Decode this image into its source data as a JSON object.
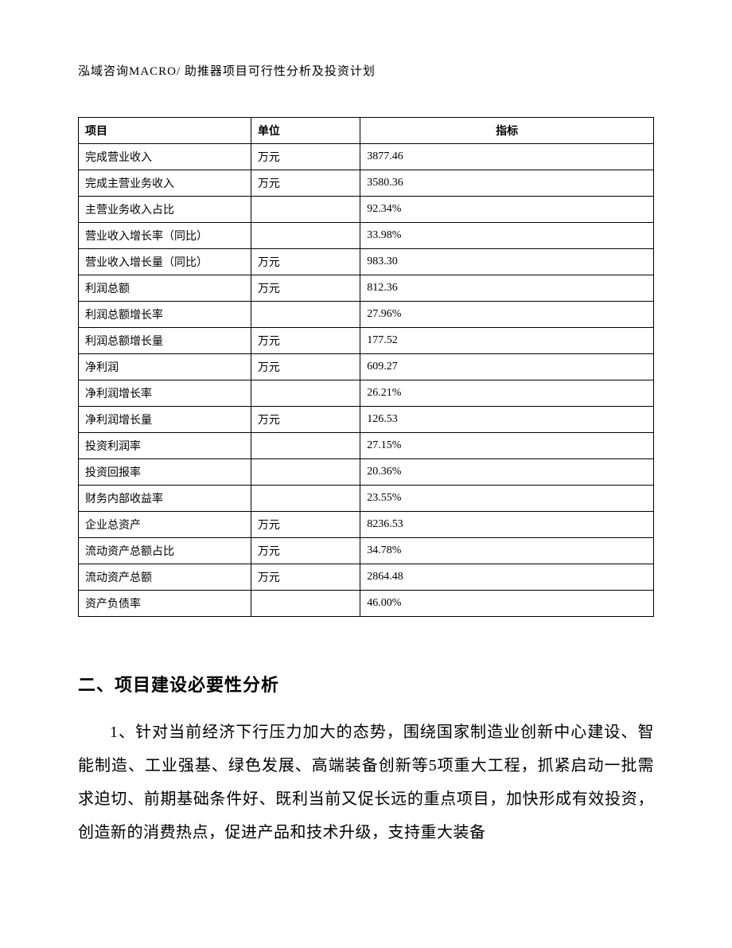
{
  "header": {
    "text": "泓域咨询MACRO/ 助推器项目可行性分析及投资计划"
  },
  "table": {
    "columns": [
      {
        "label": "项目",
        "align": "left"
      },
      {
        "label": "单位",
        "align": "left"
      },
      {
        "label": "指标",
        "align": "center"
      }
    ],
    "rows": [
      {
        "item": "完成营业收入",
        "unit": "万元",
        "indicator": "3877.46"
      },
      {
        "item": "完成主营业务收入",
        "unit": "万元",
        "indicator": "3580.36"
      },
      {
        "item": "主营业务收入占比",
        "unit": "",
        "indicator": "92.34%"
      },
      {
        "item": "营业收入增长率（同比）",
        "unit": "",
        "indicator": "33.98%"
      },
      {
        "item": "营业收入增长量（同比）",
        "unit": "万元",
        "indicator": "983.30"
      },
      {
        "item": "利润总额",
        "unit": "万元",
        "indicator": "812.36"
      },
      {
        "item": "利润总额增长率",
        "unit": "",
        "indicator": "27.96%"
      },
      {
        "item": "利润总额增长量",
        "unit": "万元",
        "indicator": "177.52"
      },
      {
        "item": "净利润",
        "unit": "万元",
        "indicator": "609.27"
      },
      {
        "item": "净利润增长率",
        "unit": "",
        "indicator": "26.21%"
      },
      {
        "item": "净利润增长量",
        "unit": "万元",
        "indicator": "126.53"
      },
      {
        "item": "投资利润率",
        "unit": "",
        "indicator": "27.15%"
      },
      {
        "item": "投资回报率",
        "unit": "",
        "indicator": "20.36%"
      },
      {
        "item": "财务内部收益率",
        "unit": "",
        "indicator": "23.55%"
      },
      {
        "item": "企业总资产",
        "unit": "万元",
        "indicator": "8236.53"
      },
      {
        "item": "流动资产总额占比",
        "unit": "万元",
        "indicator": "34.78%"
      },
      {
        "item": "流动资产总额",
        "unit": "万元",
        "indicator": "2864.48"
      },
      {
        "item": "资产负债率",
        "unit": "",
        "indicator": "46.00%"
      }
    ],
    "style": {
      "border_color": "#000000",
      "cell_font_size": 14,
      "header_font_weight": "bold",
      "col_widths_pct": [
        30,
        19,
        51
      ]
    }
  },
  "section": {
    "heading": "二、项目建设必要性分析",
    "paragraph_1": "1、针对当前经济下行压力加大的态势，围绕国家制造业创新中心建设、智能制造、工业强基、绿色发展、高端装备创新等5项重大工程，抓紧启动一批需求迫切、前期基础条件好、既利当前又促长远的重点项目，加快形成有效投资，创造新的消费热点，促进产品和技术升级，支持重大装备"
  },
  "typography": {
    "header_font_size": 15,
    "heading_font_size": 22,
    "heading_font_family": "SimHei",
    "body_font_size": 20,
    "body_line_height": 2.1,
    "body_font_family": "SimSun",
    "text_color": "#000000",
    "background_color": "#ffffff"
  }
}
